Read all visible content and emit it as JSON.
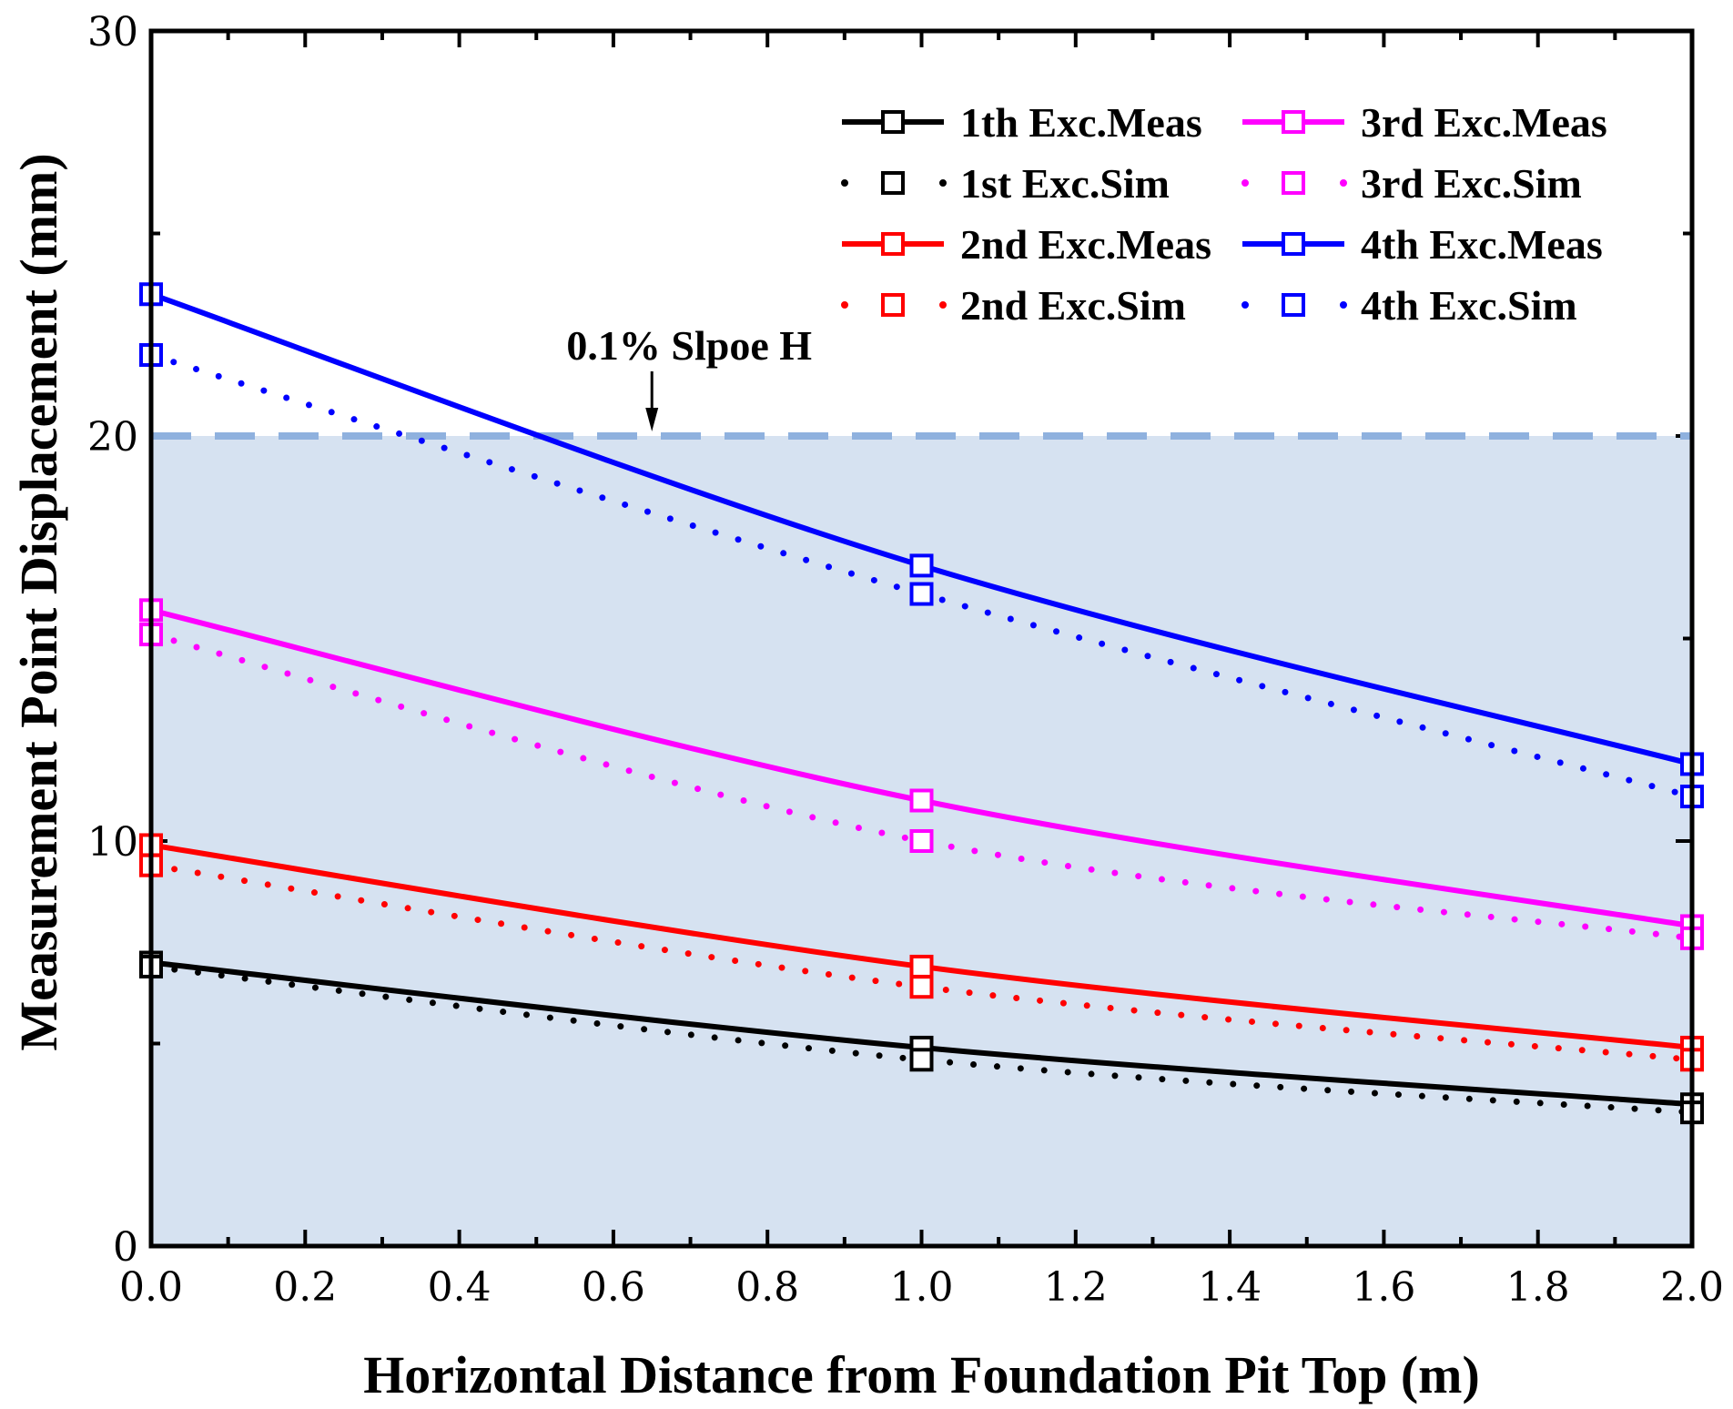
{
  "chart_data": {
    "type": "line",
    "title": "",
    "xlabel": "Horizontal Distance from Foundation Pit Top (m)",
    "ylabel": "Measurement Point Displacement (mm)",
    "xlim": [
      0.0,
      2.0
    ],
    "ylim": [
      0,
      30
    ],
    "x_ticks": [
      "0.0",
      "0.2",
      "0.4",
      "0.6",
      "0.8",
      "1.0",
      "1.2",
      "1.4",
      "1.6",
      "1.8",
      "2.0"
    ],
    "y_ticks": [
      "0",
      "10",
      "20",
      "30"
    ],
    "x": [
      0.0,
      1.0,
      2.0
    ],
    "threshold": {
      "label": "0.1% Slpoe H",
      "value": 20,
      "arrow_x": 0.65
    },
    "colors": {
      "shade": "#d6e2f1",
      "threshold_line": "#8fb1de",
      "black": "#000000",
      "red": "#ff0000",
      "magenta": "#ff00ff",
      "blue": "#0000ff"
    },
    "series": [
      {
        "name": "1th Exc.Meas",
        "color": "#000000",
        "style": "solid",
        "values": [
          7.0,
          4.9,
          3.5
        ]
      },
      {
        "name": "1st Exc.Sim",
        "color": "#000000",
        "style": "dotted",
        "values": [
          6.9,
          4.6,
          3.3
        ]
      },
      {
        "name": "2nd Exc.Meas",
        "color": "#ff0000",
        "style": "solid",
        "values": [
          9.9,
          6.9,
          4.9
        ]
      },
      {
        "name": "2nd Exc.Sim",
        "color": "#ff0000",
        "style": "dotted",
        "values": [
          9.4,
          6.4,
          4.6
        ]
      },
      {
        "name": "3rd Exc.Meas",
        "color": "#ff00ff",
        "style": "solid",
        "values": [
          15.7,
          11.0,
          7.9
        ]
      },
      {
        "name": "3rd Exc.Sim",
        "color": "#ff00ff",
        "style": "dotted",
        "values": [
          15.1,
          10.0,
          7.6
        ]
      },
      {
        "name": "4th Exc.Meas",
        "color": "#0000ff",
        "style": "solid",
        "values": [
          23.5,
          16.8,
          11.9
        ]
      },
      {
        "name": "4th Exc.Sim",
        "color": "#0000ff",
        "style": "dotted",
        "values": [
          22.0,
          16.1,
          11.1
        ]
      }
    ],
    "legend": {
      "placement": "top-right",
      "columns": [
        [
          "1th Exc.Meas",
          "1st Exc.Sim",
          "2nd Exc.Meas",
          "2nd Exc.Sim"
        ],
        [
          "3rd Exc.Meas",
          "3rd Exc.Sim",
          "4th Exc.Meas",
          "4th Exc.Sim"
        ]
      ]
    }
  }
}
